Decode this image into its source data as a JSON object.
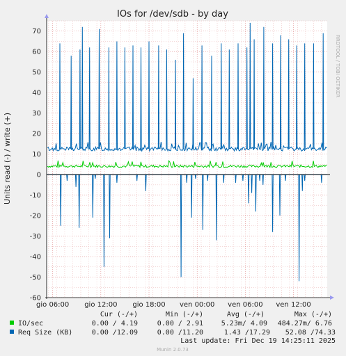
{
  "chart_data": {
    "type": "line",
    "title": "IOs for /dev/sdb - by day",
    "ylabel": "Units read (-) / write (+)",
    "watermark": "RRDTOOL / TOBI OETIKER",
    "ylim": [
      -60,
      75
    ],
    "yticks": [
      -60,
      -50,
      -40,
      -30,
      -20,
      -10,
      0,
      10,
      20,
      30,
      40,
      50,
      60,
      70
    ],
    "xlim_hours": [
      0,
      34
    ],
    "xticks": [
      {
        "label": "gio 06:00",
        "hour": 0
      },
      {
        "label": "gio 12:00",
        "hour": 6
      },
      {
        "label": "gio 18:00",
        "hour": 12
      },
      {
        "label": "ven 00:00",
        "hour": 18
      },
      {
        "label": "ven 06:00",
        "hour": 24
      },
      {
        "label": "ven 12:00",
        "hour": 30
      }
    ],
    "grid": true,
    "legend_header": {
      "cur": "Cur (-/+)",
      "min": "Min (-/+)",
      "avg": "Avg (-/+)",
      "max": "Max (-/+)"
    },
    "series": [
      {
        "name": "IO/sec",
        "color": "#00cc00",
        "cur": "0.00 / 4.19",
        "min": "0.00 / 2.91",
        "avg": "5.23m/ 4.09",
        "max": "484.27m/ 6.76",
        "baseline_write": 4.1,
        "baseline_read": 0
      },
      {
        "name": "Req Size (KB)",
        "color": "#0066b3",
        "cur": "0.00 /12.09",
        "min": "0.00 /11.20",
        "avg": "1.43 /17.29",
        "max": "52.08 /74.33",
        "baseline_write": 12.5,
        "write_spikes": [
          {
            "h": 0.9,
            "v": 64
          },
          {
            "h": 2.3,
            "v": 58
          },
          {
            "h": 3.4,
            "v": 61
          },
          {
            "h": 3.7,
            "v": 72
          },
          {
            "h": 4.6,
            "v": 62
          },
          {
            "h": 5.8,
            "v": 71
          },
          {
            "h": 7.0,
            "v": 62
          },
          {
            "h": 8.0,
            "v": 65
          },
          {
            "h": 9.0,
            "v": 62
          },
          {
            "h": 10.0,
            "v": 63
          },
          {
            "h": 11.0,
            "v": 62
          },
          {
            "h": 12.0,
            "v": 65
          },
          {
            "h": 13.2,
            "v": 63
          },
          {
            "h": 14.2,
            "v": 61
          },
          {
            "h": 15.3,
            "v": 56
          },
          {
            "h": 16.3,
            "v": 69
          },
          {
            "h": 17.5,
            "v": 47
          },
          {
            "h": 18.6,
            "v": 63
          },
          {
            "h": 19.8,
            "v": 58
          },
          {
            "h": 21.0,
            "v": 64
          },
          {
            "h": 22.0,
            "v": 61
          },
          {
            "h": 23.1,
            "v": 64
          },
          {
            "h": 24.2,
            "v": 62
          },
          {
            "h": 24.6,
            "v": 74
          },
          {
            "h": 25.1,
            "v": 66
          },
          {
            "h": 26.3,
            "v": 72
          },
          {
            "h": 27.4,
            "v": 64
          },
          {
            "h": 28.4,
            "v": 68
          },
          {
            "h": 29.4,
            "v": 66
          },
          {
            "h": 30.4,
            "v": 63
          },
          {
            "h": 31.4,
            "v": 64
          },
          {
            "h": 32.5,
            "v": 64
          },
          {
            "h": 33.7,
            "v": 69
          }
        ],
        "read_spikes": [
          {
            "h": 1.0,
            "v": -25
          },
          {
            "h": 1.8,
            "v": -3
          },
          {
            "h": 2.9,
            "v": -6
          },
          {
            "h": 3.3,
            "v": -26
          },
          {
            "h": 5.0,
            "v": -21
          },
          {
            "h": 5.3,
            "v": -2
          },
          {
            "h": 6.4,
            "v": -45
          },
          {
            "h": 7.1,
            "v": -31
          },
          {
            "h": 8.0,
            "v": -4
          },
          {
            "h": 10.5,
            "v": -3
          },
          {
            "h": 11.6,
            "v": -8
          },
          {
            "h": 16.0,
            "v": -50
          },
          {
            "h": 16.7,
            "v": -4
          },
          {
            "h": 17.3,
            "v": -21
          },
          {
            "h": 17.8,
            "v": -2
          },
          {
            "h": 18.7,
            "v": -27
          },
          {
            "h": 19.3,
            "v": -3
          },
          {
            "h": 20.4,
            "v": -32
          },
          {
            "h": 21.3,
            "v": -4
          },
          {
            "h": 22.8,
            "v": -4
          },
          {
            "h": 23.7,
            "v": -3
          },
          {
            "h": 24.4,
            "v": -14
          },
          {
            "h": 24.8,
            "v": -9
          },
          {
            "h": 25.3,
            "v": -18
          },
          {
            "h": 25.8,
            "v": -3
          },
          {
            "h": 26.2,
            "v": -5
          },
          {
            "h": 27.4,
            "v": -28
          },
          {
            "h": 28.3,
            "v": -20
          },
          {
            "h": 29.0,
            "v": -3
          },
          {
            "h": 30.7,
            "v": -52
          },
          {
            "h": 31.1,
            "v": -8
          },
          {
            "h": 31.4,
            "v": -3
          },
          {
            "h": 33.5,
            "v": -4
          }
        ]
      }
    ],
    "last_update": "Last update:  Fri Dec 19 14:25:11 2025",
    "footer": "Munin 2.0.73"
  }
}
